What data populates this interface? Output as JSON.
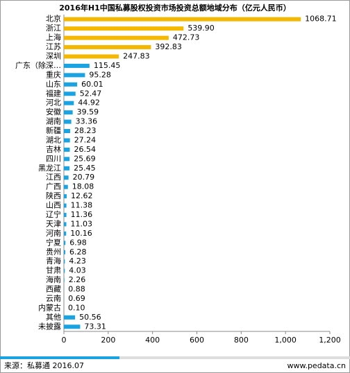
{
  "chart_data": {
    "type": "hbar",
    "title": "2016年H1中国私募股权投资市场投资总额地域分布（亿元人民币）",
    "categories": [
      "北京",
      "浙江",
      "上海",
      "江苏",
      "深圳",
      "广东（除深…",
      "重庆",
      "山东",
      "福建",
      "河北",
      "安徽",
      "湖南",
      "新疆",
      "湖北",
      "吉林",
      "四川",
      "黑龙江",
      "江西",
      "广西",
      "陕西",
      "山西",
      "辽宁",
      "天津",
      "河南",
      "宁夏",
      "贵州",
      "青海",
      "甘肃",
      "海南",
      "西藏",
      "云南",
      "内蒙古",
      "其他",
      "未披露"
    ],
    "values": [
      1068.71,
      539.9,
      472.73,
      392.83,
      247.83,
      115.45,
      95.28,
      60.01,
      52.47,
      44.92,
      39.59,
      33.36,
      28.23,
      27.24,
      26.54,
      25.69,
      25.45,
      20.79,
      18.08,
      12.62,
      11.38,
      11.36,
      11.03,
      10.16,
      6.98,
      6.28,
      4.23,
      4.03,
      2.26,
      0.88,
      0.69,
      0.1,
      50.56,
      73.31
    ],
    "value_labels": [
      "1068.71",
      "539.90",
      "472.73",
      "392.83",
      "247.83",
      "115.45",
      "95.28",
      "60.01",
      "52.47",
      "44.92",
      "39.59",
      "33.36",
      "28.23",
      "27.24",
      "26.54",
      "25.69",
      "25.45",
      "20.79",
      "18.08",
      "12.62",
      "11.38",
      "11.36",
      "11.03",
      "10.16",
      "6.98",
      "6.28",
      "4.23",
      "4.03",
      "2.26",
      "0.88",
      "0.69",
      "0.10",
      "50.56",
      "73.31"
    ],
    "colors": [
      "#f5b800",
      "#f5b800",
      "#f5b800",
      "#f5b800",
      "#f5b800",
      "#1aa3e0",
      "#1aa3e0",
      "#1aa3e0",
      "#1aa3e0",
      "#1aa3e0",
      "#1aa3e0",
      "#1aa3e0",
      "#1aa3e0",
      "#1aa3e0",
      "#1aa3e0",
      "#1aa3e0",
      "#1aa3e0",
      "#1aa3e0",
      "#1aa3e0",
      "#1aa3e0",
      "#1aa3e0",
      "#1aa3e0",
      "#1aa3e0",
      "#1aa3e0",
      "#1aa3e0",
      "#1aa3e0",
      "#1aa3e0",
      "#1aa3e0",
      "#1aa3e0",
      "#1aa3e0",
      "#1aa3e0",
      "#1aa3e0",
      "#1aa3e0",
      "#1aa3e0"
    ],
    "xlim": [
      0,
      1200
    ],
    "xticks": [
      0,
      200,
      400,
      600,
      800,
      {
        "value": 1000,
        "label": "1,000"
      },
      {
        "value": 1200,
        "label": "1,200"
      }
    ],
    "source": "来源：私募通 2016.07",
    "website": "www.pedata.cn"
  }
}
